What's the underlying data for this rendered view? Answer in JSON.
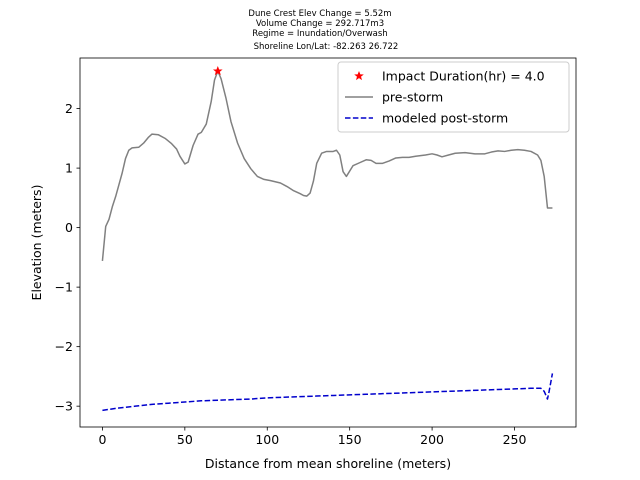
{
  "chart_data": {
    "type": "line",
    "title_lines": [
      "Dune Crest Elev Change = 5.52m",
      "Volume Change = 292.717m3",
      "Regime = Inundation/Overwash",
      "Shoreline Lon/Lat: -82.263 26.722"
    ],
    "xlabel": "Distance from mean shoreline (meters)",
    "ylabel": "Elevation (meters)",
    "xlim": [
      -13.6,
      287.3
    ],
    "ylim": [
      -3.35,
      2.85
    ],
    "xticks": [
      0,
      50,
      100,
      150,
      200,
      250
    ],
    "yticks": [
      -3,
      -2,
      -1,
      0,
      1,
      2
    ],
    "legend_position": "upper-right",
    "series": [
      {
        "name": "Impact Duration(hr) = 4.0",
        "kind": "marker",
        "marker": "star",
        "color": "#ff0000",
        "points": [
          [
            70,
            2.63
          ]
        ]
      },
      {
        "name": "pre-storm",
        "kind": "line",
        "style": "solid",
        "color": "#808080",
        "points": [
          [
            0,
            -0.56
          ],
          [
            2,
            0.02
          ],
          [
            4,
            0.14
          ],
          [
            6,
            0.35
          ],
          [
            8,
            0.52
          ],
          [
            10,
            0.72
          ],
          [
            12,
            0.92
          ],
          [
            14,
            1.16
          ],
          [
            16,
            1.3
          ],
          [
            18,
            1.34
          ],
          [
            22,
            1.35
          ],
          [
            25,
            1.42
          ],
          [
            28,
            1.52
          ],
          [
            30,
            1.57
          ],
          [
            34,
            1.56
          ],
          [
            38,
            1.5
          ],
          [
            42,
            1.41
          ],
          [
            45,
            1.32
          ],
          [
            47,
            1.2
          ],
          [
            50,
            1.07
          ],
          [
            52,
            1.1
          ],
          [
            55,
            1.38
          ],
          [
            58,
            1.57
          ],
          [
            60,
            1.6
          ],
          [
            63,
            1.74
          ],
          [
            66,
            2.12
          ],
          [
            68,
            2.48
          ],
          [
            70,
            2.63
          ],
          [
            72,
            2.5
          ],
          [
            75,
            2.17
          ],
          [
            78,
            1.78
          ],
          [
            82,
            1.42
          ],
          [
            86,
            1.16
          ],
          [
            90,
            0.99
          ],
          [
            94,
            0.86
          ],
          [
            98,
            0.81
          ],
          [
            102,
            0.79
          ],
          [
            108,
            0.75
          ],
          [
            112,
            0.69
          ],
          [
            116,
            0.62
          ],
          [
            120,
            0.57
          ],
          [
            122,
            0.54
          ],
          [
            124,
            0.53
          ],
          [
            126,
            0.58
          ],
          [
            128,
            0.78
          ],
          [
            130,
            1.08
          ],
          [
            133,
            1.25
          ],
          [
            136,
            1.28
          ],
          [
            140,
            1.28
          ],
          [
            142,
            1.3
          ],
          [
            144,
            1.22
          ],
          [
            146,
            0.94
          ],
          [
            148,
            0.86
          ],
          [
            152,
            1.04
          ],
          [
            156,
            1.09
          ],
          [
            160,
            1.14
          ],
          [
            163,
            1.13
          ],
          [
            166,
            1.08
          ],
          [
            170,
            1.08
          ],
          [
            174,
            1.12
          ],
          [
            178,
            1.17
          ],
          [
            182,
            1.18
          ],
          [
            186,
            1.18
          ],
          [
            190,
            1.2
          ],
          [
            196,
            1.22
          ],
          [
            200,
            1.24
          ],
          [
            203,
            1.22
          ],
          [
            206,
            1.19
          ],
          [
            210,
            1.22
          ],
          [
            214,
            1.25
          ],
          [
            220,
            1.26
          ],
          [
            226,
            1.24
          ],
          [
            232,
            1.24
          ],
          [
            236,
            1.27
          ],
          [
            240,
            1.29
          ],
          [
            244,
            1.28
          ],
          [
            248,
            1.3
          ],
          [
            252,
            1.31
          ],
          [
            256,
            1.3
          ],
          [
            260,
            1.28
          ],
          [
            264,
            1.22
          ],
          [
            266,
            1.13
          ],
          [
            268,
            0.86
          ],
          [
            270,
            0.33
          ],
          [
            273,
            0.33
          ]
        ]
      },
      {
        "name": "modeled post-storm",
        "kind": "line",
        "style": "dashed",
        "color": "#0000cc",
        "points": [
          [
            0,
            -3.07
          ],
          [
            10,
            -3.03
          ],
          [
            20,
            -3.0
          ],
          [
            30,
            -2.97
          ],
          [
            40,
            -2.95
          ],
          [
            50,
            -2.93
          ],
          [
            60,
            -2.91
          ],
          [
            70,
            -2.9
          ],
          [
            80,
            -2.89
          ],
          [
            90,
            -2.88
          ],
          [
            100,
            -2.86
          ],
          [
            110,
            -2.85
          ],
          [
            120,
            -2.84
          ],
          [
            130,
            -2.83
          ],
          [
            140,
            -2.82
          ],
          [
            150,
            -2.81
          ],
          [
            160,
            -2.8
          ],
          [
            170,
            -2.79
          ],
          [
            180,
            -2.78
          ],
          [
            190,
            -2.77
          ],
          [
            200,
            -2.76
          ],
          [
            210,
            -2.75
          ],
          [
            220,
            -2.74
          ],
          [
            230,
            -2.73
          ],
          [
            240,
            -2.72
          ],
          [
            250,
            -2.71
          ],
          [
            260,
            -2.7
          ],
          [
            266,
            -2.7
          ],
          [
            268,
            -2.75
          ],
          [
            270,
            -2.88
          ],
          [
            271,
            -2.75
          ],
          [
            273,
            -2.45
          ]
        ]
      }
    ]
  }
}
